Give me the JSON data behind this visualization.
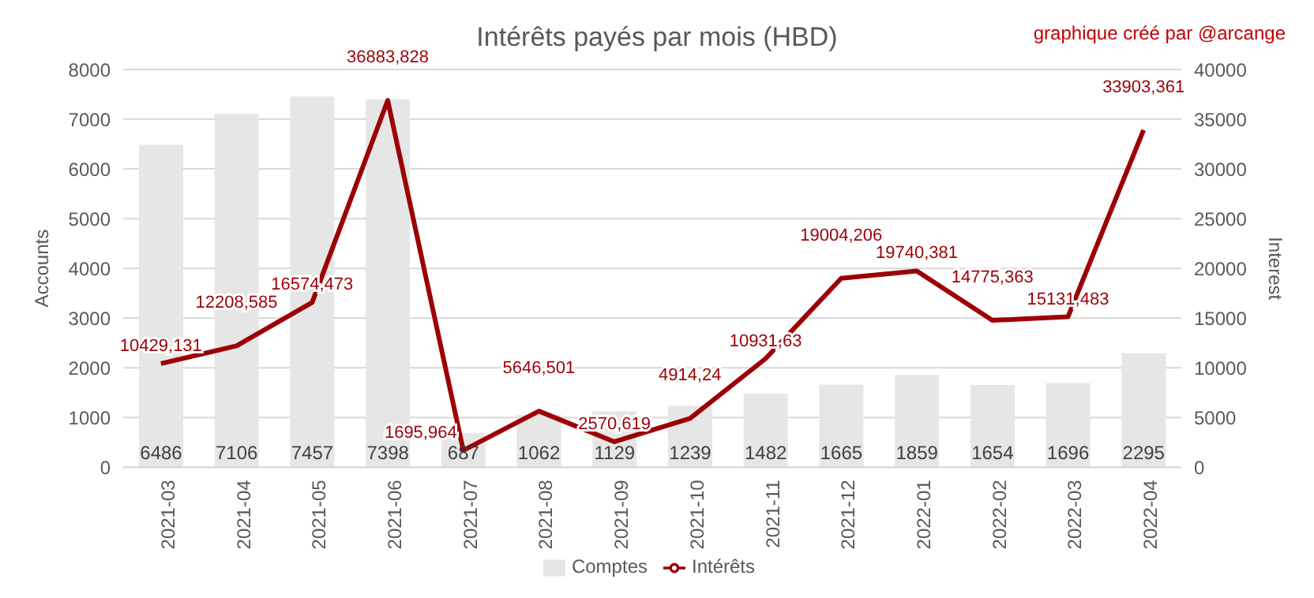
{
  "chart_data": {
    "type": "bar",
    "title": "Intérêts payés par mois (HBD)",
    "annotations": [
      "graphique créé par @arcange"
    ],
    "categories": [
      "2021-03",
      "2021-04",
      "2021-05",
      "2021-06",
      "2021-07",
      "2021-08",
      "2021-09",
      "2021-10",
      "2021-11",
      "2021-12",
      "2022-01",
      "2022-02",
      "2022-03",
      "2022-04"
    ],
    "ylabel": "Accounts",
    "y2label": "Interest",
    "ylim": [
      0,
      8000
    ],
    "yticks": [
      0,
      1000,
      2000,
      3000,
      4000,
      5000,
      6000,
      7000,
      8000
    ],
    "y2lim": [
      0,
      40000
    ],
    "y2ticks": [
      0,
      5000,
      10000,
      15000,
      20000,
      25000,
      30000,
      35000,
      40000
    ],
    "grid": "y",
    "legend": "bottom",
    "series": [
      {
        "name": "Comptes",
        "color": "#e7e6e6",
        "values": [
          6486,
          7106,
          7457,
          7398,
          687,
          1062,
          1129,
          1239,
          1482,
          1665,
          1859,
          1654,
          1696,
          2295
        ],
        "value_labels": [
          "6486",
          "7106",
          "7457",
          "7398",
          "687",
          "1062",
          "1129",
          "1239",
          "1482",
          "1665",
          "1859",
          "1654",
          "1696",
          "2295"
        ]
      },
      {
        "name": "Intérêts",
        "type": "line",
        "axis": "y2",
        "color": "#9c0006",
        "values": [
          10429.131,
          12208.585,
          16574.473,
          36883.828,
          1695.964,
          5646.501,
          2570.619,
          4914.24,
          10931.63,
          19004.206,
          19740.381,
          14775.363,
          15131.483,
          33903.361
        ],
        "value_labels": [
          "10429,131",
          "12208,585",
          "16574,473",
          "36883,828",
          "1695,964",
          "5646,501",
          "2570,619",
          "4914,24",
          "10931,63",
          "19004,206",
          "19740,381",
          "14775,363",
          "15131,483",
          "33903,361"
        ]
      }
    ]
  }
}
